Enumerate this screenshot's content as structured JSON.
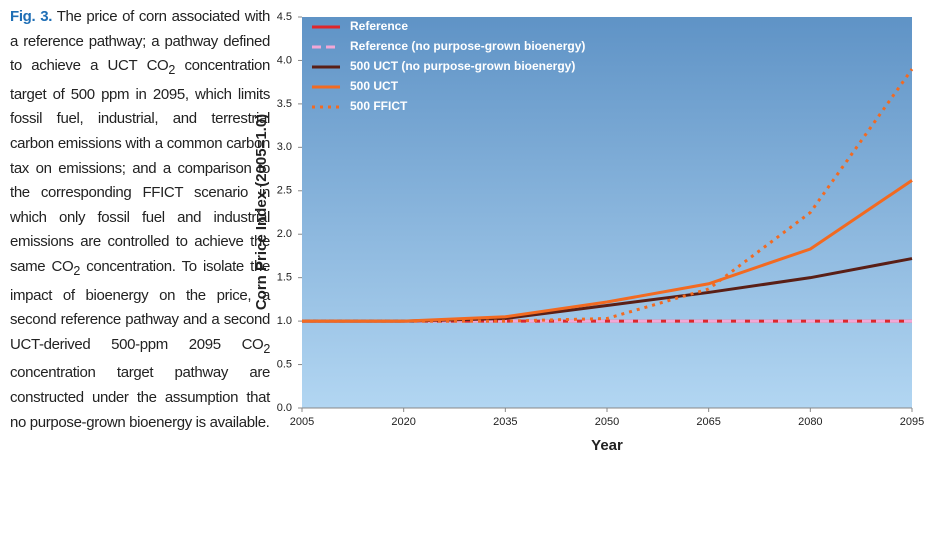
{
  "caption": {
    "label": "Fig. 3.",
    "segments": [
      "The price of corn associated with a reference pathway; a pathway defined to achieve a UCT CO",
      "2",
      " concentration target of 500 ppm in 2095, which limits fossil fuel, industrial, and terrestrial carbon emissions with a common carbon tax on emissions; and a comparison to the corresponding FFICT scenario in which only fossil fuel and industrial emissions are controlled to achieve the same CO",
      "2",
      " concentration. To isolate the impact of bioenergy on the price, a second reference pathway and a second UCT-derived 500-ppm 2095 CO",
      "2",
      " concentration target pathway are constructed under the assumption that no purpose-grown bioenergy is available."
    ]
  },
  "chart_data": {
    "type": "line",
    "x_label": "Year",
    "y_label": "Corn Price Index (2005=1.0)",
    "x": [
      2005,
      2020,
      2035,
      2050,
      2065,
      2080,
      2095
    ],
    "xlim": [
      2005,
      2095
    ],
    "xticks": [
      2005,
      2020,
      2035,
      2050,
      2065,
      2080,
      2095
    ],
    "ylim": [
      0,
      4.5
    ],
    "yticks": [
      {
        "value": 0,
        "label": "0.0"
      },
      0.5,
      {
        "value": 1,
        "label": "1.0"
      },
      1.5,
      {
        "value": 2,
        "label": "2.0"
      },
      2.5,
      {
        "value": 3,
        "label": "3.0"
      },
      3.5,
      {
        "value": 4,
        "label": "4.0"
      },
      4.5
    ],
    "legend": "top-left",
    "series": [
      {
        "name": "Reference",
        "color": "#e0262a",
        "linestyle": "solid",
        "values": [
          1.0,
          1.0,
          1.0,
          1.0,
          1.0,
          1.0,
          1.0
        ]
      },
      {
        "name": "Reference (no purpose-grown bioenergy)",
        "color": "#f2a7d6",
        "linestyle": "dashed",
        "values": [
          1.0,
          1.0,
          1.0,
          1.0,
          1.0,
          1.0,
          1.0
        ]
      },
      {
        "name": "500 UCT (no purpose-grown bioenergy)",
        "color": "#5a1f16",
        "linestyle": "solid",
        "values": [
          1.0,
          1.0,
          1.03,
          1.18,
          1.33,
          1.5,
          1.72
        ]
      },
      {
        "name": "500 UCT",
        "color": "#f26a21",
        "linestyle": "solid",
        "values": [
          1.0,
          1.0,
          1.05,
          1.22,
          1.43,
          1.83,
          2.62
        ]
      },
      {
        "name": "500 FFICT",
        "color": "#f26a21",
        "linestyle": "dotted",
        "values": [
          1.0,
          1.0,
          1.0,
          1.03,
          1.37,
          2.25,
          3.9
        ]
      }
    ]
  }
}
